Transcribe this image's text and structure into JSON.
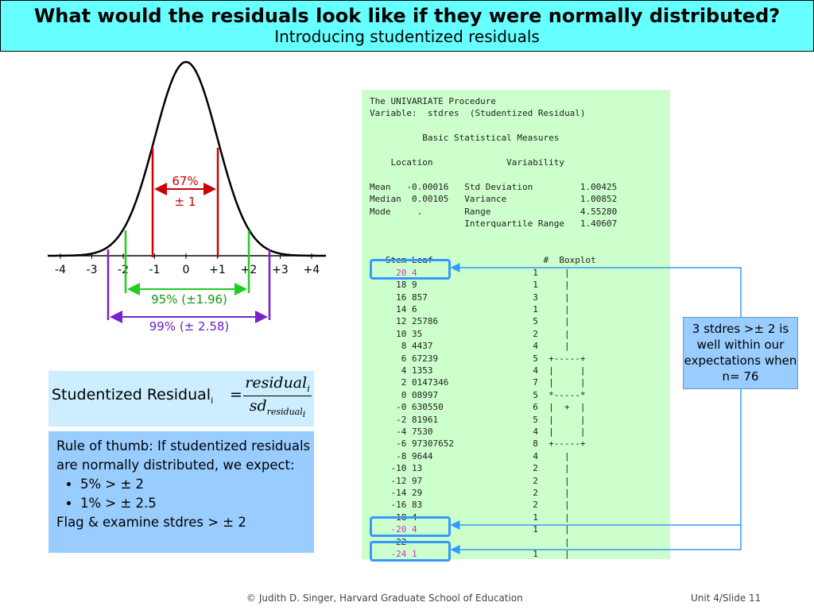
{
  "title": {
    "main": "What would the residuals look like if they were normally distributed?",
    "sub": "Introducing studentized residuals"
  },
  "bell_curve": {
    "axis_ticks": [
      "-4",
      "-3",
      "-2",
      "-1",
      "0",
      "+1",
      "+2",
      "+3",
      "+4"
    ],
    "band_67_percent": "67%",
    "band_67_range": "± 1",
    "band_95": "95% (±1.96)",
    "band_99": "99% (± 2.58)",
    "colors": {
      "red": "#cc0000",
      "green": "#22cc22",
      "purple": "#7722cc",
      "curve": "#000000"
    }
  },
  "sas_output": {
    "header_lines": [
      "The UNIVARIATE Procedure",
      "Variable:  stdres  (Studentized Residual)",
      "",
      "          Basic Statistical Measures",
      "",
      "    Location              Variability",
      "",
      "Mean   -0.00016   Std Deviation         1.00425",
      "Median  0.00105   Variance              1.00852",
      "Mode     .        Range                 4.55280",
      "                  Interquartile Range   1.40607",
      "",
      "",
      "   Stem Leaf                     #  Boxplot"
    ],
    "stem_rows": [
      {
        "stem": "     20 4",
        "rest": "                      1     |",
        "highlight": true
      },
      {
        "stem": "     18 9",
        "rest": "                      1     |",
        "highlight": false
      },
      {
        "stem": "     16 857",
        "rest": "                    3     |",
        "highlight": false
      },
      {
        "stem": "     14 6",
        "rest": "                      1     |",
        "highlight": false
      },
      {
        "stem": "     12 25786",
        "rest": "                  5     |",
        "highlight": false
      },
      {
        "stem": "     10 35",
        "rest": "                     2     |",
        "highlight": false
      },
      {
        "stem": "      8 4437",
        "rest": "                   4     |",
        "highlight": false
      },
      {
        "stem": "      6 67239",
        "rest": "                  5  +-----+",
        "highlight": false
      },
      {
        "stem": "      4 1353",
        "rest": "                   4  |     |",
        "highlight": false
      },
      {
        "stem": "      2 0147346",
        "rest": "                7  |     |",
        "highlight": false
      },
      {
        "stem": "      0 08997",
        "rest": "                  5  *-----*",
        "highlight": false
      },
      {
        "stem": "     -0 630550",
        "rest": "                 6  |  +  |",
        "highlight": false
      },
      {
        "stem": "     -2 81961",
        "rest": "                  5  |     |",
        "highlight": false
      },
      {
        "stem": "     -4 7530",
        "rest": "                   4  |     |",
        "highlight": false
      },
      {
        "stem": "     -6 97307652",
        "rest": "               8  +-----+",
        "highlight": false
      },
      {
        "stem": "     -8 9644",
        "rest": "                   4     |",
        "highlight": false
      },
      {
        "stem": "    -10 13",
        "rest": "                     2     |",
        "highlight": false
      },
      {
        "stem": "    -12 97",
        "rest": "                     2     |",
        "highlight": false
      },
      {
        "stem": "    -14 29",
        "rest": "                     2     |",
        "highlight": false
      },
      {
        "stem": "    -16 83",
        "rest": "                     2     |",
        "highlight": false
      },
      {
        "stem": "    -18 4",
        "rest": "                      1     |",
        "highlight": false
      },
      {
        "stem": "    -20 4",
        "rest": "                      1     |",
        "highlight": true
      },
      {
        "stem": "    -22",
        "rest": "                              |",
        "highlight": false
      },
      {
        "stem": "    -24 1",
        "rest": "                      1     |",
        "highlight": true
      }
    ]
  },
  "callout": {
    "text": "3 stdres >± 2 is well within our expectations when n= 76"
  },
  "formula": {
    "label": "Studentized Residual",
    "label_sub": "i",
    "equals": "=",
    "numerator": "residual",
    "numerator_sub": "i",
    "denominator": "sd",
    "denominator_sub": "residual",
    "denominator_subsub": "i"
  },
  "rule_of_thumb": {
    "intro": "Rule of thumb: If studentized residuals are normally distributed, we expect:",
    "bullets": [
      "5% > ± 2",
      "1% > ± 2.5"
    ],
    "closing": "Flag & examine stdres > ± 2"
  },
  "footer": {
    "left": "© Judith D. Singer, Harvard Graduate School of Education",
    "right": "Unit 4/Slide 11"
  }
}
